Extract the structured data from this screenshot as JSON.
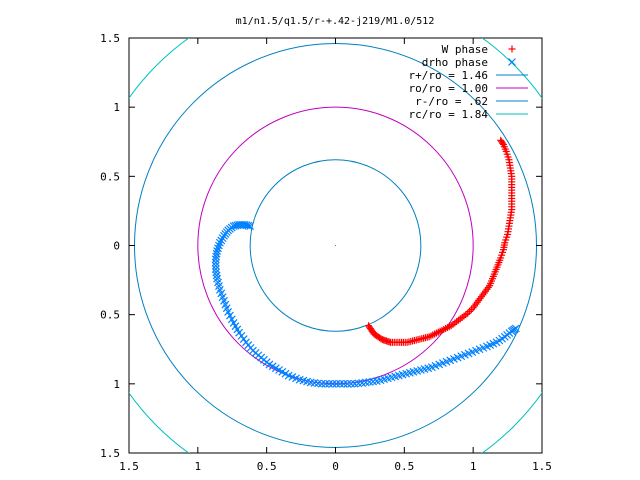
{
  "chart_data": {
    "type": "scatter",
    "title": "m1/n1.5/q1.5/r-+.42-j219/M1.0/512",
    "xlabel": "",
    "ylabel": "",
    "xlim": [
      -1.5,
      1.5
    ],
    "ylim": [
      -1.5,
      1.5
    ],
    "x_ticks": [
      -1.5,
      -1,
      -0.5,
      0,
      0.5,
      1,
      1.5
    ],
    "y_ticks": [
      -1.5,
      -1,
      -0.5,
      0,
      0.5,
      1,
      1.5
    ],
    "x_tick_labels": [
      "1.5",
      "1",
      "0.5",
      "0",
      "0.5",
      "1",
      "1.5"
    ],
    "y_tick_labels": [
      "1.5",
      "1",
      "0.5",
      "0",
      "0.5",
      "1",
      "1.5"
    ],
    "grid": false,
    "legend_position": "top-right",
    "series": [
      {
        "name": "W phase",
        "kind": "points",
        "marker": "plus",
        "color": "#ff0000",
        "points": [
          [
            0.24,
            -0.58
          ],
          [
            0.26,
            -0.61
          ],
          [
            0.28,
            -0.64
          ],
          [
            0.31,
            -0.66
          ],
          [
            0.34,
            -0.68
          ],
          [
            0.37,
            -0.69
          ],
          [
            0.4,
            -0.7
          ],
          [
            0.44,
            -0.7
          ],
          [
            0.48,
            -0.7
          ],
          [
            0.52,
            -0.7
          ],
          [
            0.56,
            -0.69
          ],
          [
            0.6,
            -0.68
          ],
          [
            0.64,
            -0.67
          ],
          [
            0.68,
            -0.66
          ],
          [
            0.72,
            -0.64
          ],
          [
            0.76,
            -0.62
          ],
          [
            0.8,
            -0.6
          ],
          [
            0.84,
            -0.58
          ],
          [
            0.88,
            -0.55
          ],
          [
            0.92,
            -0.52
          ],
          [
            0.96,
            -0.49
          ],
          [
            1.0,
            -0.45
          ],
          [
            1.03,
            -0.41
          ],
          [
            1.06,
            -0.37
          ],
          [
            1.09,
            -0.33
          ],
          [
            1.12,
            -0.29
          ],
          [
            1.14,
            -0.24
          ],
          [
            1.16,
            -0.19
          ],
          [
            1.18,
            -0.14
          ],
          [
            1.2,
            -0.09
          ],
          [
            1.22,
            -0.03
          ],
          [
            1.23,
            0.02
          ],
          [
            1.25,
            0.08
          ],
          [
            1.26,
            0.14
          ],
          [
            1.27,
            0.2
          ],
          [
            1.28,
            0.26
          ],
          [
            1.28,
            0.32
          ],
          [
            1.28,
            0.38
          ],
          [
            1.28,
            0.44
          ],
          [
            1.28,
            0.5
          ],
          [
            1.27,
            0.56
          ],
          [
            1.26,
            0.62
          ],
          [
            1.24,
            0.68
          ],
          [
            1.22,
            0.73
          ],
          [
            1.2,
            0.76
          ]
        ]
      },
      {
        "name": "drho phase",
        "kind": "points",
        "marker": "cross",
        "color": "#0080ff",
        "points": [
          [
            -0.62,
            0.14
          ],
          [
            -0.66,
            0.15
          ],
          [
            -0.7,
            0.15
          ],
          [
            -0.74,
            0.14
          ],
          [
            -0.78,
            0.11
          ],
          [
            -0.81,
            0.07
          ],
          [
            -0.84,
            0.02
          ],
          [
            -0.86,
            -0.04
          ],
          [
            -0.87,
            -0.1
          ],
          [
            -0.87,
            -0.17
          ],
          [
            -0.86,
            -0.24
          ],
          [
            -0.84,
            -0.32
          ],
          [
            -0.81,
            -0.4
          ],
          [
            -0.78,
            -0.48
          ],
          [
            -0.74,
            -0.56
          ],
          [
            -0.7,
            -0.63
          ],
          [
            -0.65,
            -0.7
          ],
          [
            -0.6,
            -0.76
          ],
          [
            -0.54,
            -0.81
          ],
          [
            -0.48,
            -0.86
          ],
          [
            -0.41,
            -0.9
          ],
          [
            -0.34,
            -0.94
          ],
          [
            -0.26,
            -0.97
          ],
          [
            -0.18,
            -0.99
          ],
          [
            -0.1,
            -1.0
          ],
          [
            -0.02,
            -1.0
          ],
          [
            0.06,
            -1.0
          ],
          [
            0.14,
            -1.0
          ],
          [
            0.22,
            -0.99
          ],
          [
            0.3,
            -0.98
          ],
          [
            0.38,
            -0.96
          ],
          [
            0.46,
            -0.94
          ],
          [
            0.54,
            -0.92
          ],
          [
            0.62,
            -0.9
          ],
          [
            0.7,
            -0.88
          ],
          [
            0.78,
            -0.85
          ],
          [
            0.86,
            -0.82
          ],
          [
            0.94,
            -0.79
          ],
          [
            1.02,
            -0.76
          ],
          [
            1.1,
            -0.73
          ],
          [
            1.17,
            -0.7
          ],
          [
            1.23,
            -0.66
          ],
          [
            1.28,
            -0.62
          ],
          [
            1.31,
            -0.6
          ]
        ]
      },
      {
        "name": "r+/ro = 1.46",
        "kind": "circle",
        "r": 1.46,
        "color": "#0080c0"
      },
      {
        "name": "ro/ro = 1.00",
        "kind": "circle",
        "r": 1.0,
        "color": "#c000c0"
      },
      {
        "name": "r-/ro = .62",
        "kind": "circle",
        "r": 0.62,
        "color": "#0080c0"
      },
      {
        "name": "rc/ro = 1.84",
        "kind": "circle",
        "r": 1.84,
        "color": "#00c0c0"
      }
    ]
  }
}
